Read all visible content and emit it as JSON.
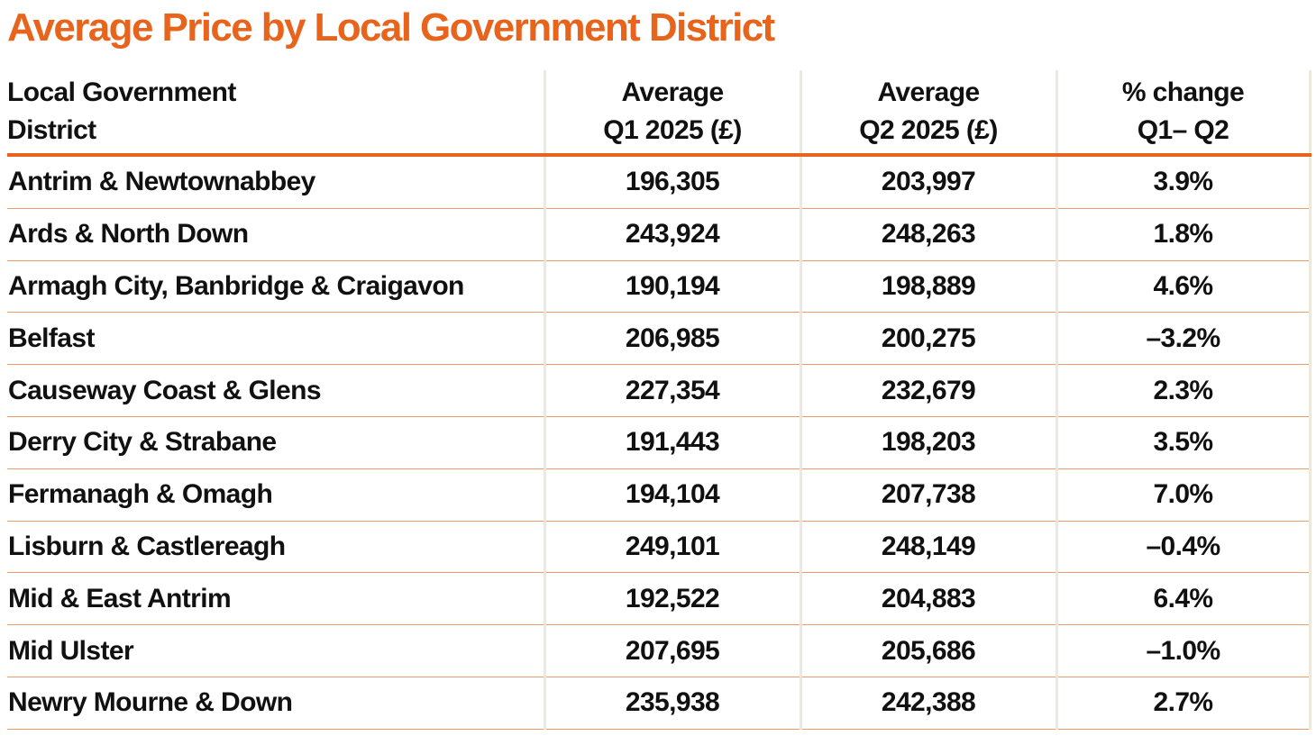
{
  "title": "Average Price by Local Government District",
  "colors": {
    "accent": "#e8641c",
    "row_rule": "#f09a66",
    "column_divider": "#ece9dd"
  },
  "chart_data": {
    "type": "table",
    "title": "Average Price by Local Government District",
    "columns": [
      [
        "Local Government",
        "District"
      ],
      [
        "Average",
        "Q1 2025 (£)"
      ],
      [
        "Average",
        "Q2 2025 (£)"
      ],
      [
        "% change",
        "Q1– Q2"
      ]
    ],
    "rows": [
      [
        "Antrim & Newtownabbey",
        "196,305",
        "203,997",
        "3.9%"
      ],
      [
        "Ards & North Down",
        "243,924",
        "248,263",
        "1.8%"
      ],
      [
        "Armagh City, Banbridge & Craigavon",
        "190,194",
        "198,889",
        "4.6%"
      ],
      [
        "Belfast",
        "206,985",
        "200,275",
        "–3.2%"
      ],
      [
        "Causeway Coast & Glens",
        "227,354",
        "232,679",
        "2.3%"
      ],
      [
        "Derry City & Strabane",
        "191,443",
        "198,203",
        "3.5%"
      ],
      [
        "Fermanagh & Omagh",
        "194,104",
        "207,738",
        "7.0%"
      ],
      [
        "Lisburn & Castlereagh",
        "249,101",
        "248,149",
        "–0.4%"
      ],
      [
        "Mid & East Antrim",
        "192,522",
        "204,883",
        "6.4%"
      ],
      [
        "Mid Ulster",
        "207,695",
        "205,686",
        "–1.0%"
      ],
      [
        "Newry Mourne & Down",
        "235,938",
        "242,388",
        "2.7%"
      ]
    ]
  }
}
